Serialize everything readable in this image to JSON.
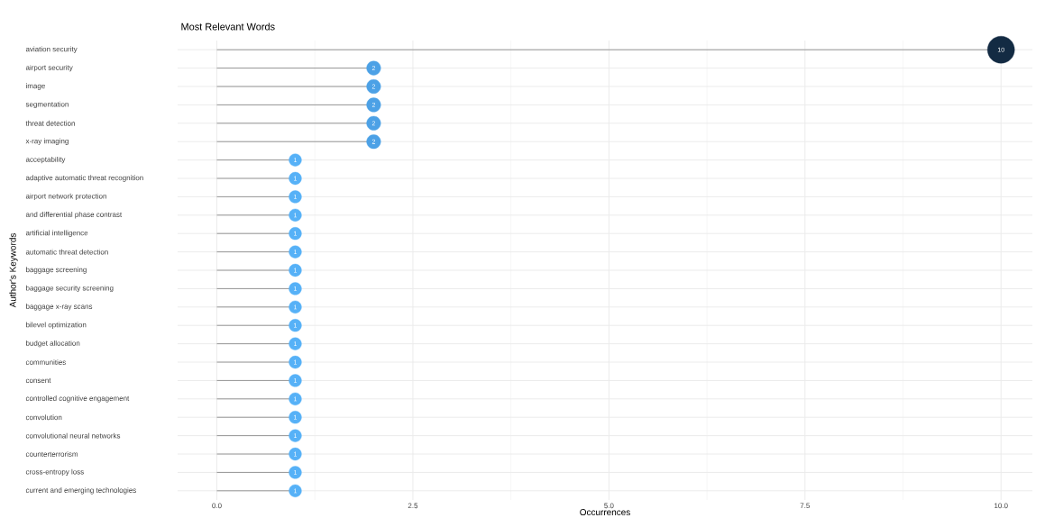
{
  "chart_data": {
    "type": "lollipop",
    "orientation": "horizontal",
    "title": "Most Relevant Words",
    "xlabel": "Occurrences",
    "ylabel": "Author's Keywords",
    "categories": [
      "aviation security",
      "airport security",
      "image",
      "segmentation",
      "threat detection",
      "x-ray imaging",
      "acceptability",
      "adaptive automatic threat recognition",
      "airport network protection",
      "and differential phase contrast",
      "artificial intelligence",
      "automatic threat detection",
      "baggage screening",
      "baggage security screening",
      "baggage x-ray scans",
      "bilevel optimization",
      "budget allocation",
      "communities",
      "consent",
      "controlled cognitive engagement",
      "convolution",
      "convolutional neural networks",
      "counterterrorism",
      "cross-entropy loss",
      "current and emerging technologies"
    ],
    "values": [
      10,
      2,
      2,
      2,
      2,
      2,
      1,
      1,
      1,
      1,
      1,
      1,
      1,
      1,
      1,
      1,
      1,
      1,
      1,
      1,
      1,
      1,
      1,
      1,
      1
    ],
    "colors": [
      "#132b43",
      "#4ca1e6",
      "#4ca1e6",
      "#4ca1e6",
      "#4ca1e6",
      "#4ca1e6",
      "#56b1f7",
      "#56b1f7",
      "#56b1f7",
      "#56b1f7",
      "#56b1f7",
      "#56b1f7",
      "#56b1f7",
      "#56b1f7",
      "#56b1f7",
      "#56b1f7",
      "#56b1f7",
      "#56b1f7",
      "#56b1f7",
      "#56b1f7",
      "#56b1f7",
      "#56b1f7",
      "#56b1f7",
      "#56b1f7",
      "#56b1f7"
    ],
    "xlim": [
      -0.5,
      10.4
    ],
    "xticks": [
      {
        "value": 0,
        "label": "0.0"
      },
      {
        "value": 2.5,
        "label": "2.5"
      },
      {
        "value": 5,
        "label": "5.0"
      },
      {
        "value": 7.5,
        "label": "7.5"
      },
      {
        "value": 10,
        "label": "10.0"
      }
    ],
    "grid": true,
    "data_labels": true
  }
}
